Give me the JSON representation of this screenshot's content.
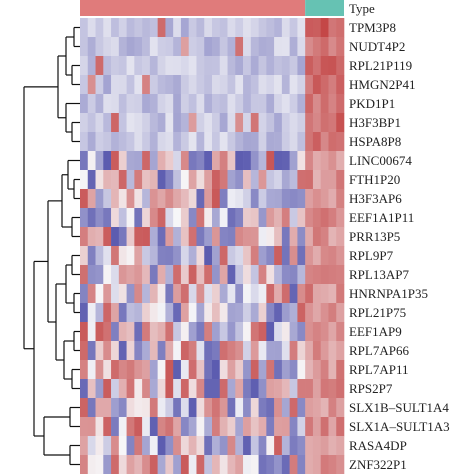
{
  "chart_data": {
    "type": "heatmap",
    "annotation_label": "Type",
    "annotation_colors": {
      "group_a": "#E07B7B",
      "group_b": "#66C2B3"
    },
    "group_split_column": 29,
    "n_columns": 34,
    "color_scale": {
      "low": "#3F3FA2",
      "mid": "#F6F6F8",
      "high": "#C03A3A"
    },
    "rows": [
      "TPM3P8",
      "NUDT4P2",
      "RPL21P119",
      "HMGN2P41",
      "PKD1P1",
      "H3F3BP1",
      "HSPA8P8",
      "LINC00674",
      "FTH1P20",
      "H3F3AP6",
      "EEF1A1P11",
      "PRR13P5",
      "RPL9P7",
      "RPL13AP7",
      "HNRNPA1P35",
      "RPL21P75",
      "EEF1AP9",
      "RPL7AP66",
      "RPL7AP11",
      "RPS2P7",
      "SLX1B–SULT1A4",
      "SLX1A–SULT1A3",
      "RASA4DP",
      "ZNF322P1"
    ]
  }
}
